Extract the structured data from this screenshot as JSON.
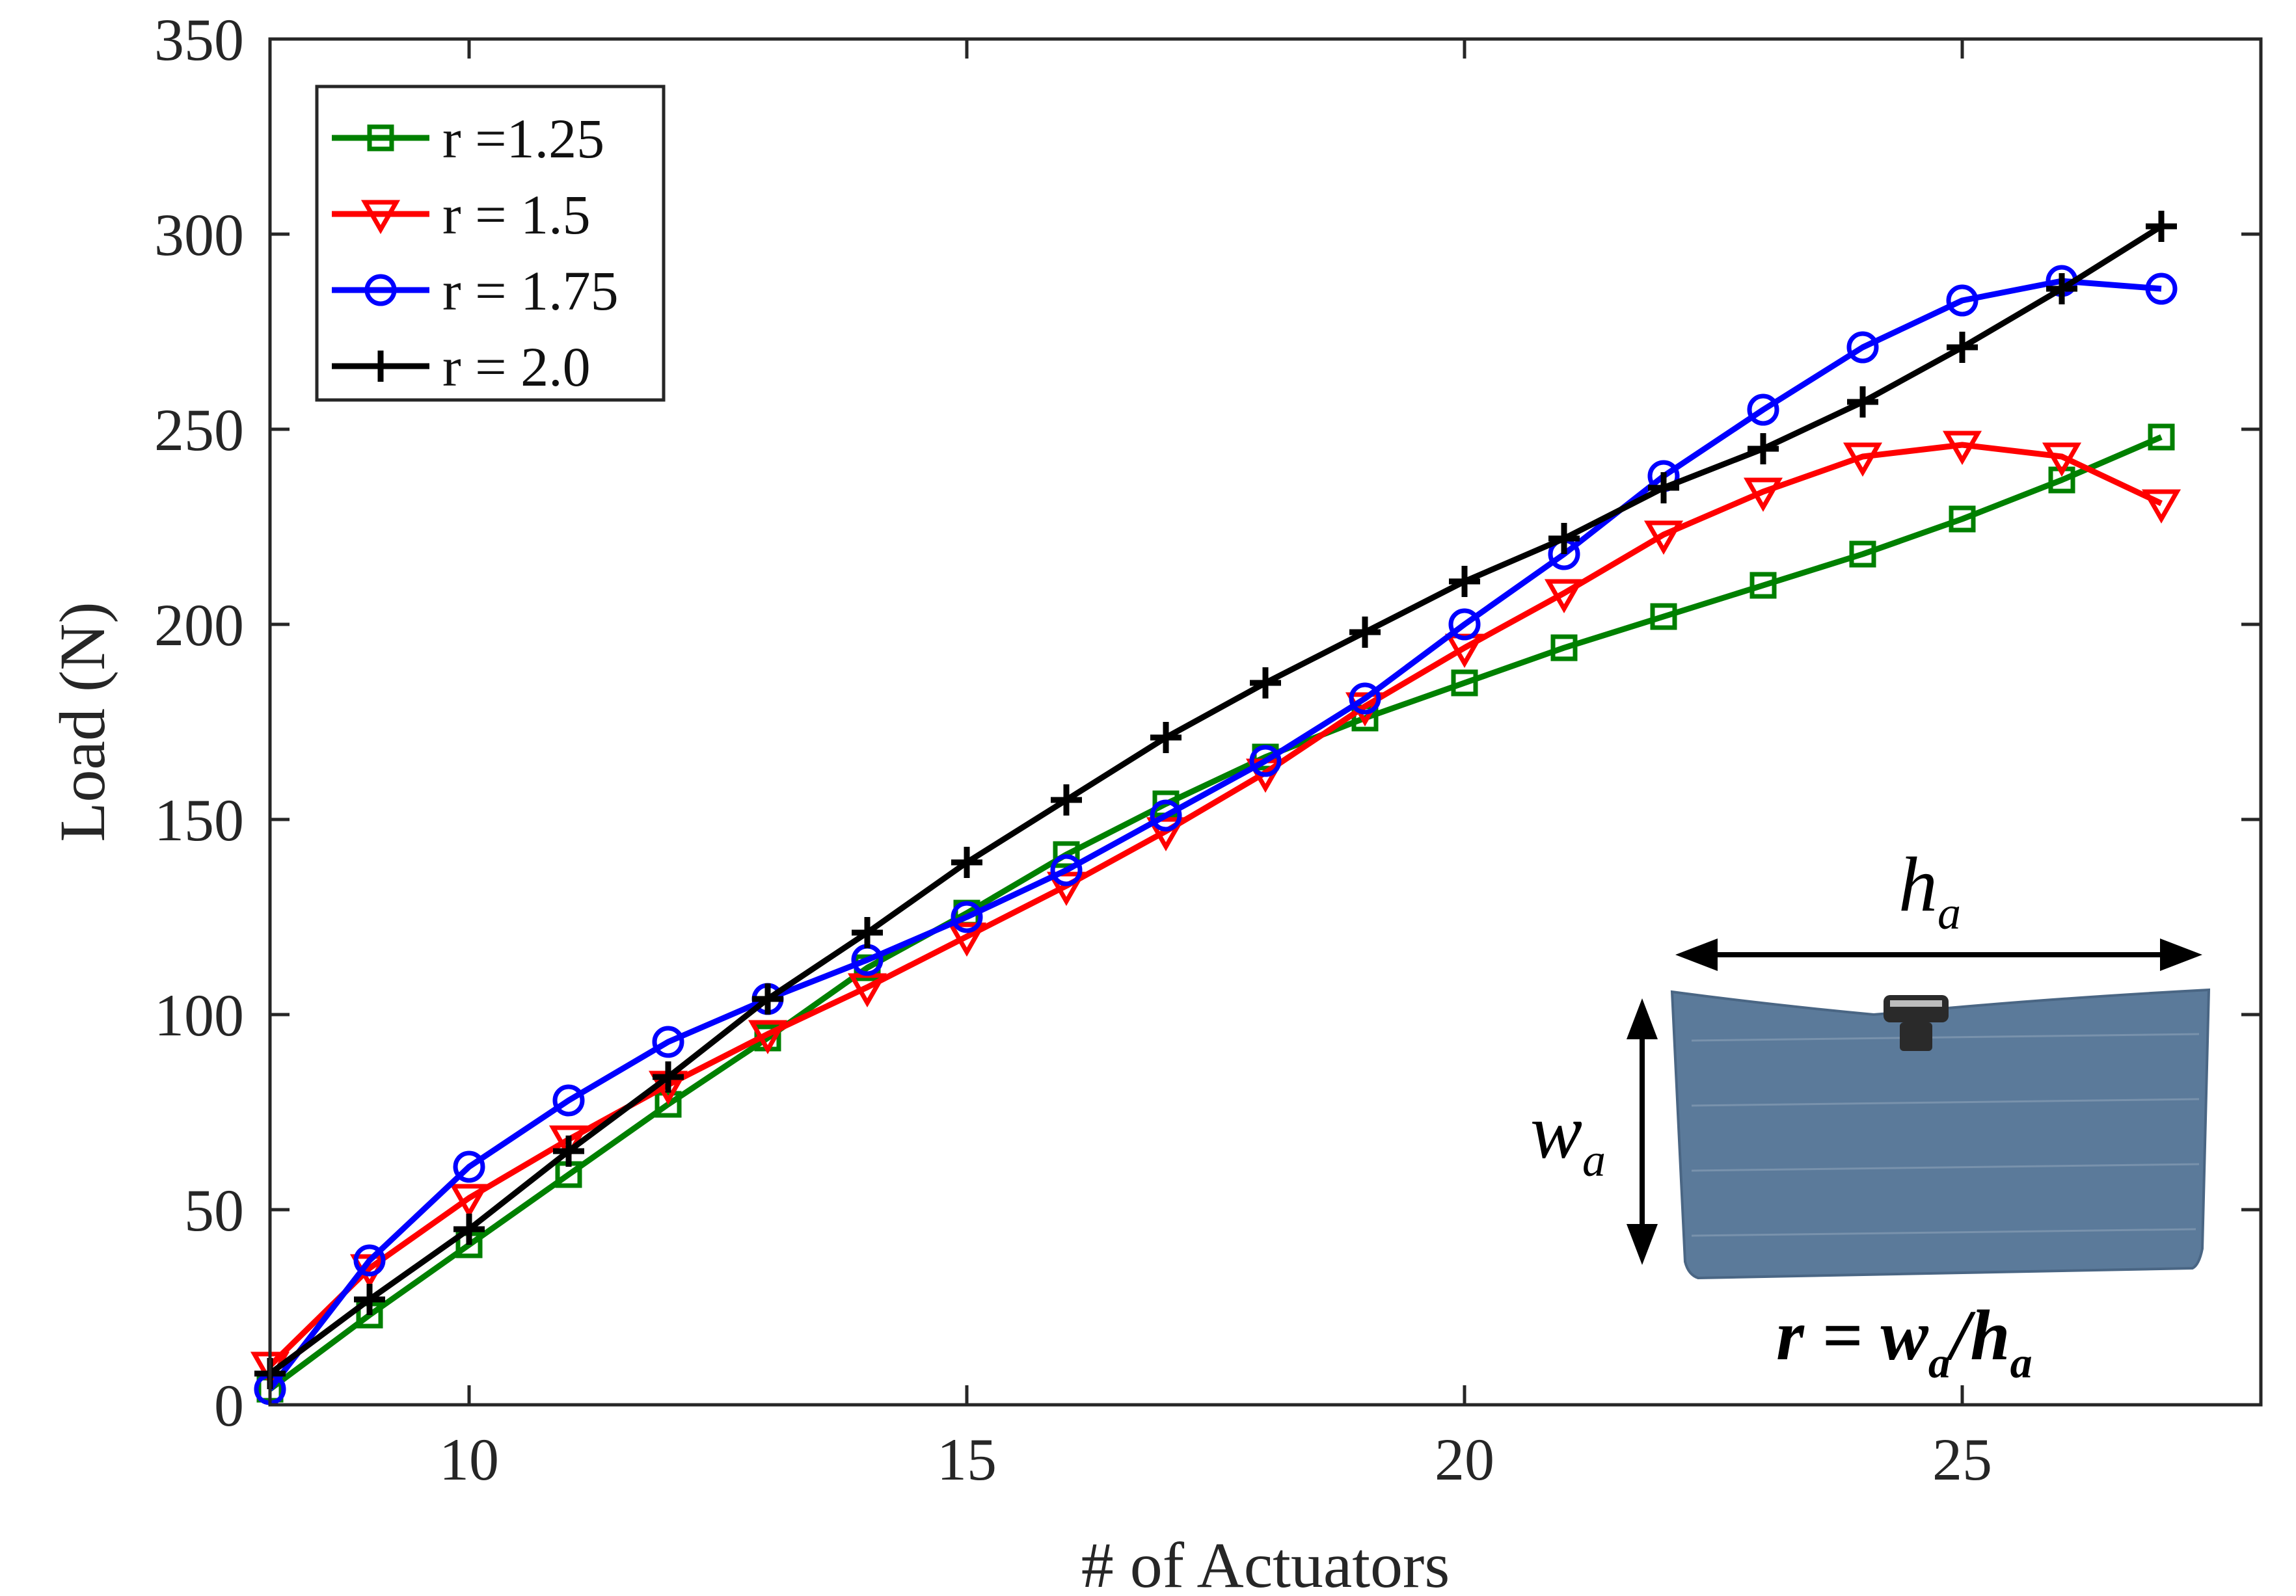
{
  "chart_data": {
    "type": "line",
    "title": "",
    "xlabel": "# of Actuators",
    "ylabel": "Load (N)",
    "xlim": [
      8,
      28
    ],
    "ylim": [
      0,
      350
    ],
    "xticks": [
      10,
      15,
      20,
      25
    ],
    "yticks": [
      0,
      50,
      100,
      150,
      200,
      250,
      300,
      350
    ],
    "grid": false,
    "legend": "top-left",
    "x": [
      8,
      9,
      10,
      11,
      12,
      13,
      14,
      15,
      16,
      17,
      18,
      19,
      20,
      21,
      22,
      23,
      24,
      25,
      26,
      27
    ],
    "series": [
      {
        "name": "r =1.25",
        "color": "#008000",
        "marker": "square",
        "values": [
          4,
          23,
          41,
          59,
          77,
          94,
          112,
          126,
          141,
          154,
          166,
          176,
          185,
          194,
          202,
          210,
          218,
          227,
          237,
          248
        ]
      },
      {
        "name": "r = 1.5",
        "color": "#ff0000",
        "marker": "triangle-down",
        "values": [
          10,
          35,
          53,
          68,
          82,
          95,
          107,
          120,
          133,
          147,
          162,
          179,
          194,
          208,
          223,
          234,
          243,
          246,
          243,
          231
        ]
      },
      {
        "name": "r = 1.75",
        "color": "#0000ff",
        "marker": "circle",
        "values": [
          4,
          37,
          61,
          78,
          93,
          104,
          114,
          125,
          137,
          151,
          165,
          181,
          200,
          218,
          238,
          255,
          271,
          283,
          288,
          286
        ]
      },
      {
        "name": "r = 2.0",
        "color": "#000000",
        "marker": "plus",
        "values": [
          8,
          27,
          45,
          65,
          84,
          104,
          121,
          139,
          155,
          171,
          185,
          198,
          211,
          222,
          235,
          245,
          257,
          271,
          286,
          302
        ]
      }
    ]
  },
  "inset": {
    "h_var": "h",
    "w_var": "w",
    "subscript": "a",
    "eq_r": "r = w",
    "eq_slash": "/h",
    "panel_color": "#5b7a9a",
    "panel_edge_color": "#4a6684",
    "fitting_color": "#2a2a2a"
  }
}
